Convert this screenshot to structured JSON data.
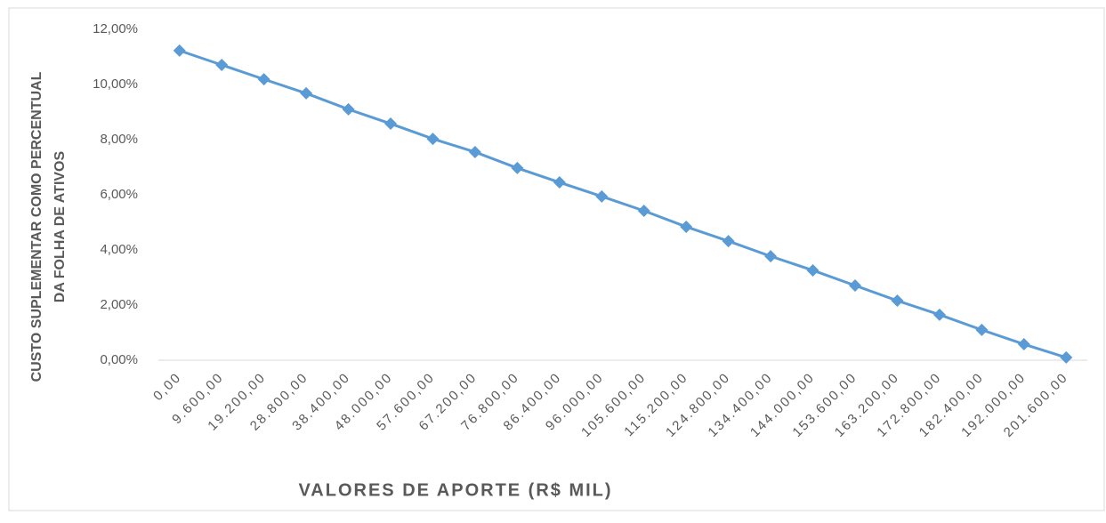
{
  "chart_data": {
    "type": "line",
    "y_label": [
      "CUSTO SUPLEMENTAR COMO PERCENTUAL",
      "DA FOLHA DE ATIVOS"
    ],
    "x_label": "VALORES DE APORTE (R$ MIL)",
    "categories": [
      "0,00",
      "9.600,00",
      "19.200,00",
      "28.800,00",
      "38.400,00",
      "48.000,00",
      "57.600,00",
      "67.200,00",
      "76.800,00",
      "86.400,00",
      "96.000,00",
      "105.600,00",
      "115.200,00",
      "124.800,00",
      "134.400,00",
      "144.000,00",
      "153.600,00",
      "163.200,00",
      "172.800,00",
      "182.400,00",
      "192.000,00",
      "201.600,00"
    ],
    "values": [
      11.23,
      10.71,
      10.19,
      9.68,
      9.1,
      8.58,
      8.03,
      7.55,
      6.97,
      6.45,
      5.94,
      5.42,
      4.84,
      4.32,
      3.77,
      3.26,
      2.71,
      2.16,
      1.65,
      1.1,
      0.58,
      0.1
    ],
    "color": "#5b9bd5",
    "ylim": [
      0,
      12
    ],
    "yticks": [
      {
        "value": 0,
        "label": "0,00%"
      },
      {
        "value": 2,
        "label": "2,00%"
      },
      {
        "value": 4,
        "label": "4,00%"
      },
      {
        "value": 6,
        "label": "6,00%"
      },
      {
        "value": 8,
        "label": "8,00%"
      },
      {
        "value": 10,
        "label": "10,00%"
      },
      {
        "value": 12,
        "label": "12,00%"
      }
    ],
    "grid": false
  }
}
